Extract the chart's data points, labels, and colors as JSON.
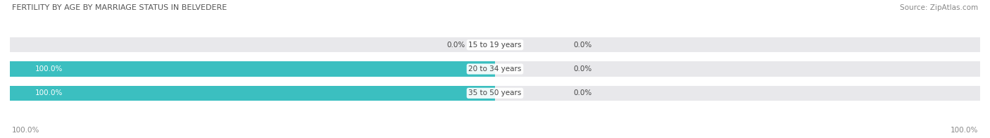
{
  "title": "FERTILITY BY AGE BY MARRIAGE STATUS IN BELVEDERE",
  "source": "Source: ZipAtlas.com",
  "categories": [
    "15 to 19 years",
    "20 to 34 years",
    "35 to 50 years"
  ],
  "married_values": [
    0.0,
    100.0,
    100.0
  ],
  "unmarried_values": [
    0.0,
    0.0,
    0.0
  ],
  "married_color": "#3bbfc0",
  "unmarried_color": "#f4a0b0",
  "bar_bg_color": "#e8e8eb",
  "label_left_married": [
    "0.0%",
    "100.0%",
    "100.0%"
  ],
  "label_right_unmarried": [
    "0.0%",
    "0.0%",
    "0.0%"
  ],
  "x_left_label": "100.0%",
  "x_right_label": "100.0%",
  "bar_height": 0.62,
  "fig_width": 14.06,
  "fig_height": 1.96,
  "title_fontsize": 8.0,
  "source_fontsize": 7.5,
  "label_fontsize": 7.5,
  "category_fontsize": 7.5,
  "legend_fontsize": 8.0,
  "axis_label_fontsize": 7.5,
  "background_color": "#ffffff"
}
